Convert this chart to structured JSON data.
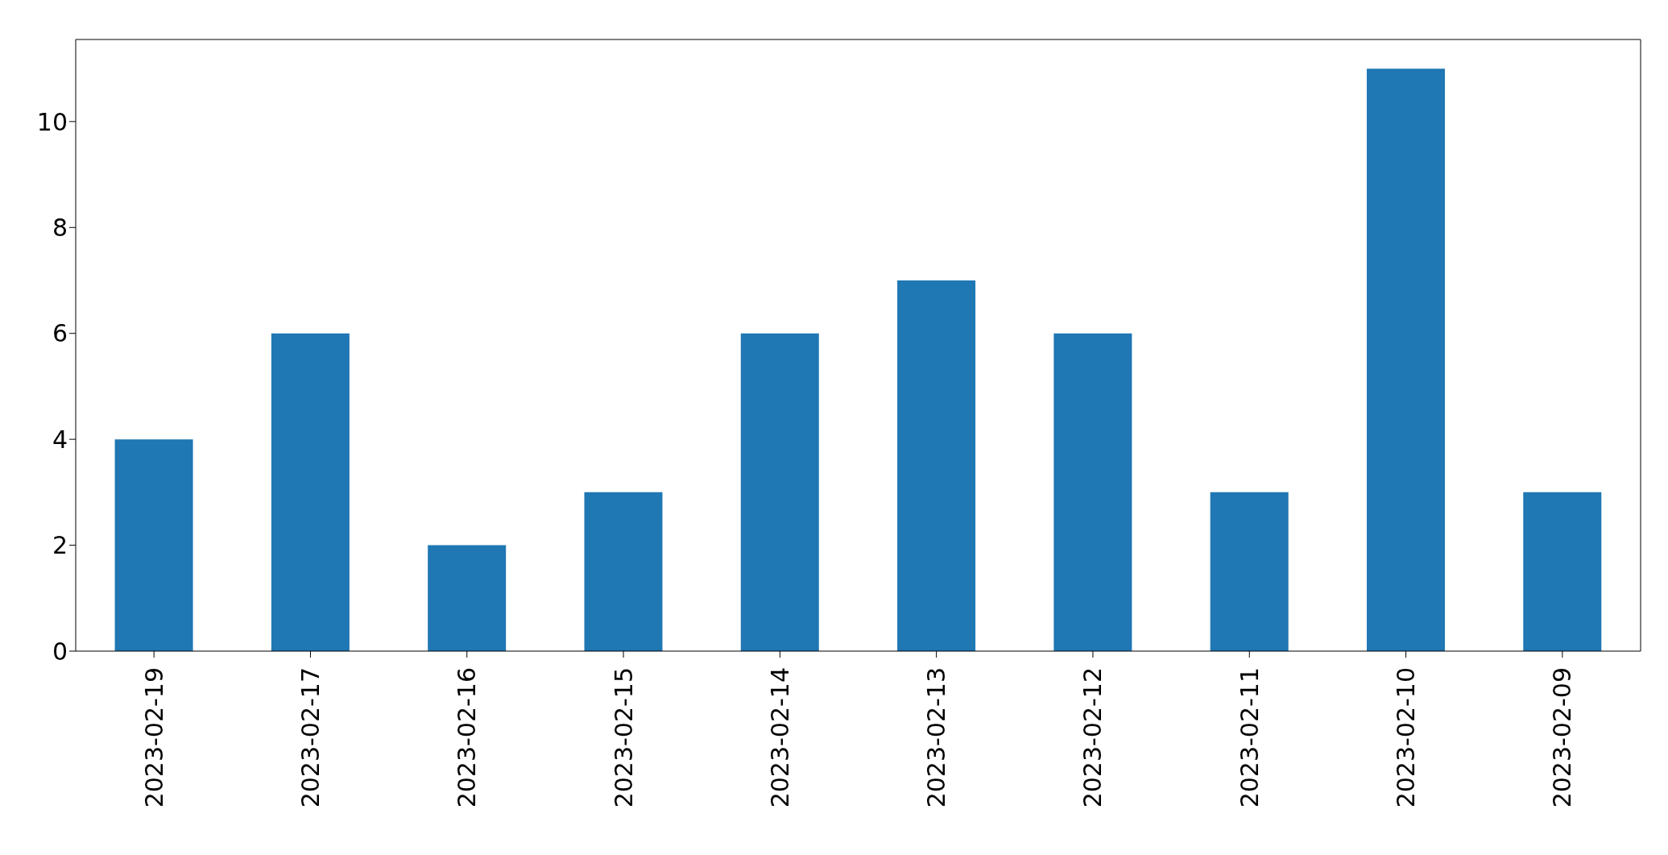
{
  "chart_data": {
    "type": "bar",
    "categories": [
      "2023-02-19",
      "2023-02-17",
      "2023-02-16",
      "2023-02-15",
      "2023-02-14",
      "2023-02-13",
      "2023-02-12",
      "2023-02-11",
      "2023-02-10",
      "2023-02-09"
    ],
    "values": [
      4,
      6,
      2,
      3,
      6,
      7,
      6,
      3,
      11,
      3
    ],
    "color": "#1f77b4",
    "ylim": [
      0,
      11.55
    ],
    "yticks": [
      0,
      2,
      4,
      6,
      8,
      10
    ],
    "grid": false
  }
}
